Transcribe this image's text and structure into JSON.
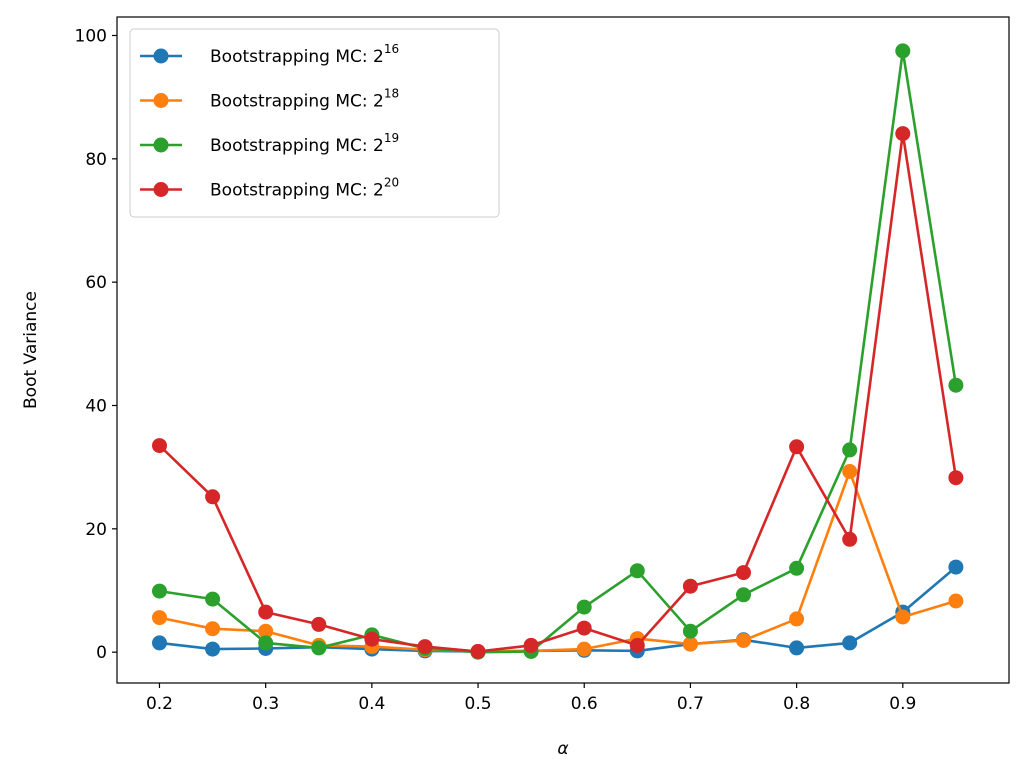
{
  "chart_data": {
    "type": "line",
    "title": "",
    "xlabel": "α",
    "ylabel": "Boot Variance",
    "xlim": [
      0.16,
      1.0
    ],
    "ylim": [
      -5,
      103
    ],
    "xticks": [
      0.2,
      0.3,
      0.4,
      0.5,
      0.6,
      0.7,
      0.8,
      0.9
    ],
    "xtick_labels": [
      "0.2",
      "0.3",
      "0.4",
      "0.5",
      "0.6",
      "0.7",
      "0.8",
      "0.9"
    ],
    "yticks": [
      0,
      20,
      40,
      60,
      80,
      100
    ],
    "ytick_labels": [
      "0",
      "20",
      "40",
      "60",
      "80",
      "100"
    ],
    "grid": false,
    "legend_position": "top-left",
    "x": [
      0.2,
      0.25,
      0.3,
      0.35,
      0.4,
      0.45,
      0.5,
      0.55,
      0.6,
      0.65,
      0.7,
      0.75,
      0.8,
      0.85,
      0.9,
      0.95
    ],
    "series": [
      {
        "name": "Bootstrapping MC: 2",
        "exponent": "16",
        "color": "#1f77b4",
        "values": [
          1.5,
          0.5,
          0.6,
          0.8,
          0.5,
          0.2,
          0.1,
          0.2,
          0.3,
          0.2,
          1.3,
          2.0,
          0.7,
          1.5,
          6.5,
          13.8
        ]
      },
      {
        "name": "Bootstrapping MC: 2",
        "exponent": "18",
        "color": "#ff7f0e",
        "values": [
          5.6,
          3.8,
          3.4,
          1.1,
          0.9,
          0.4,
          0.1,
          0.2,
          0.5,
          2.2,
          1.3,
          1.9,
          5.4,
          29.3,
          5.7,
          8.3
        ]
      },
      {
        "name": "Bootstrapping MC: 2",
        "exponent": "19",
        "color": "#2ca02c",
        "values": [
          9.9,
          8.6,
          1.5,
          0.7,
          2.8,
          0.6,
          0.0,
          0.1,
          7.3,
          13.2,
          3.4,
          9.3,
          13.6,
          32.8,
          97.5,
          43.3
        ]
      },
      {
        "name": "Bootstrapping MC: 2",
        "exponent": "20",
        "color": "#d62728",
        "values": [
          33.5,
          25.2,
          6.5,
          4.5,
          2.1,
          0.9,
          0.1,
          1.1,
          3.9,
          1.1,
          10.7,
          12.9,
          33.3,
          18.3,
          84.1,
          28.3
        ]
      }
    ]
  }
}
